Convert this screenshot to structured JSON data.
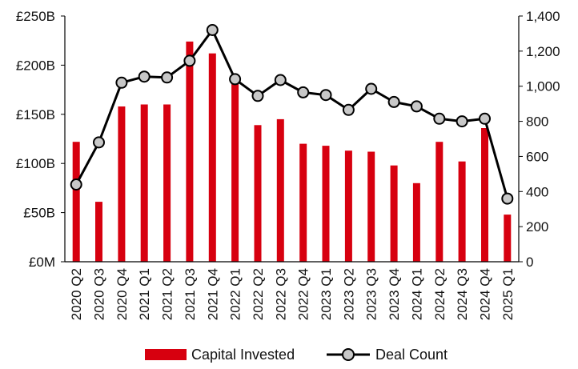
{
  "chart_data": {
    "type": "bar+line",
    "categories": [
      "2020 Q2",
      "2020 Q3",
      "2020 Q4",
      "2021 Q1",
      "2021 Q2",
      "2021 Q3",
      "2021 Q4",
      "2022 Q1",
      "2022 Q2",
      "2022 Q3",
      "2022 Q4",
      "2023 Q1",
      "2023 Q2",
      "2023 Q3",
      "2023 Q4",
      "2024 Q1",
      "2024 Q2",
      "2024 Q3",
      "2024 Q4",
      "2025 Q1"
    ],
    "series": [
      {
        "name": "Capital Invested",
        "type": "bar",
        "axis": "left",
        "color": "#d7000f",
        "values": [
          122,
          61,
          158,
          160,
          160,
          224,
          212,
          182,
          139,
          145,
          120,
          118,
          113,
          112,
          98,
          80,
          122,
          102,
          136,
          48
        ]
      },
      {
        "name": "Deal Count",
        "type": "line",
        "axis": "right",
        "color": "#000000",
        "marker_fill": "#c8c8c8",
        "values": [
          440,
          680,
          1020,
          1055,
          1050,
          1145,
          1320,
          1040,
          945,
          1035,
          965,
          950,
          865,
          985,
          910,
          885,
          815,
          800,
          815,
          360
        ]
      }
    ],
    "y_left": {
      "range": [
        0,
        250
      ],
      "ticks": [
        0,
        50,
        100,
        150,
        200,
        250
      ],
      "tick_labels": [
        "£0M",
        "£50B",
        "£100B",
        "£150B",
        "£200B",
        "£250B"
      ]
    },
    "y_right": {
      "range": [
        0,
        1400
      ],
      "ticks": [
        0,
        200,
        400,
        600,
        800,
        1000,
        1200,
        1400
      ],
      "tick_labels": [
        "0",
        "200",
        "400",
        "600",
        "800",
        "1,000",
        "1,200",
        "1,400"
      ]
    },
    "grid": false,
    "legend_position": "bottom-center",
    "legend": [
      {
        "label": "Capital Invested",
        "kind": "bar"
      },
      {
        "label": "Deal Count",
        "kind": "line-marker"
      }
    ],
    "title": "",
    "xlabel": "",
    "ylabel": ""
  }
}
